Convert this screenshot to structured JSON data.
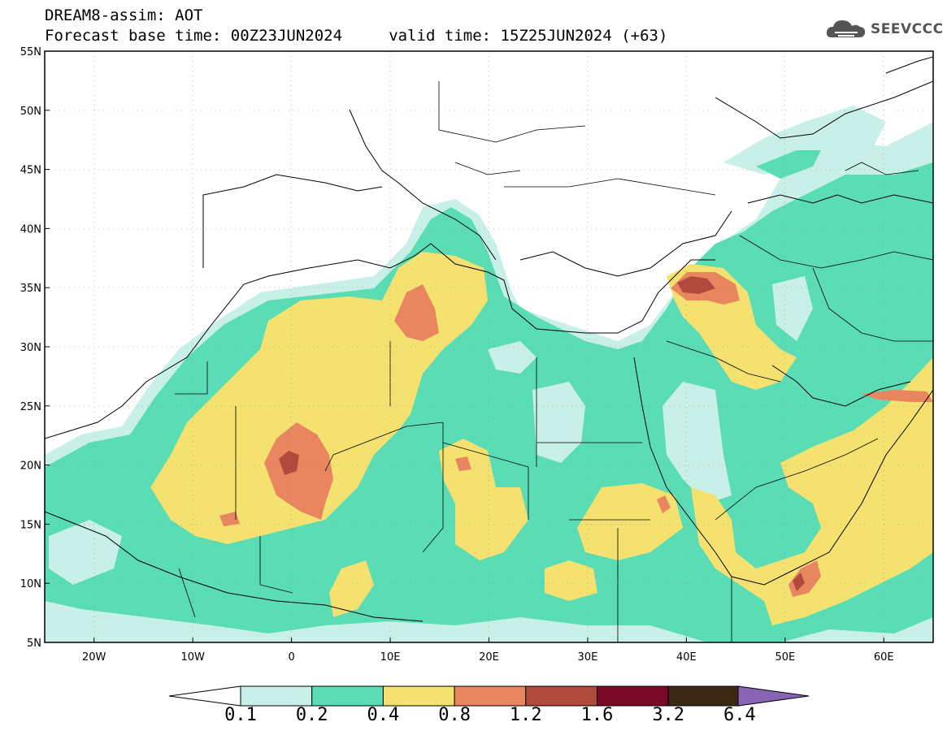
{
  "header": {
    "title_line1": "DREAM8-assim: AOT",
    "title_line2": "Forecast base time: 00Z23JUN2024     valid time: 15Z25JUN2024 (+63)",
    "logo_text": "SEEVCCC"
  },
  "map": {
    "lon_range": [
      -25,
      65
    ],
    "lat_range": [
      5,
      55
    ],
    "lat_labels": [
      "55N",
      "50N",
      "45N",
      "40N",
      "35N",
      "30N",
      "25N",
      "20N",
      "15N",
      "10N",
      "5N"
    ],
    "lon_labels": [
      "20W",
      "10W",
      "0",
      "10E",
      "20E",
      "30E",
      "40E",
      "50E",
      "60E"
    ]
  },
  "colorbar": {
    "levels": [
      "0.1",
      "0.2",
      "0.4",
      "0.8",
      "1.2",
      "1.6",
      "3.2",
      "6.4"
    ],
    "colors": [
      "#c8f0e8",
      "#5adcb4",
      "#f5e170",
      "#e8875f",
      "#b04a3c",
      "#7a0a28",
      "#3c2814",
      "#8a64b4"
    ]
  }
}
